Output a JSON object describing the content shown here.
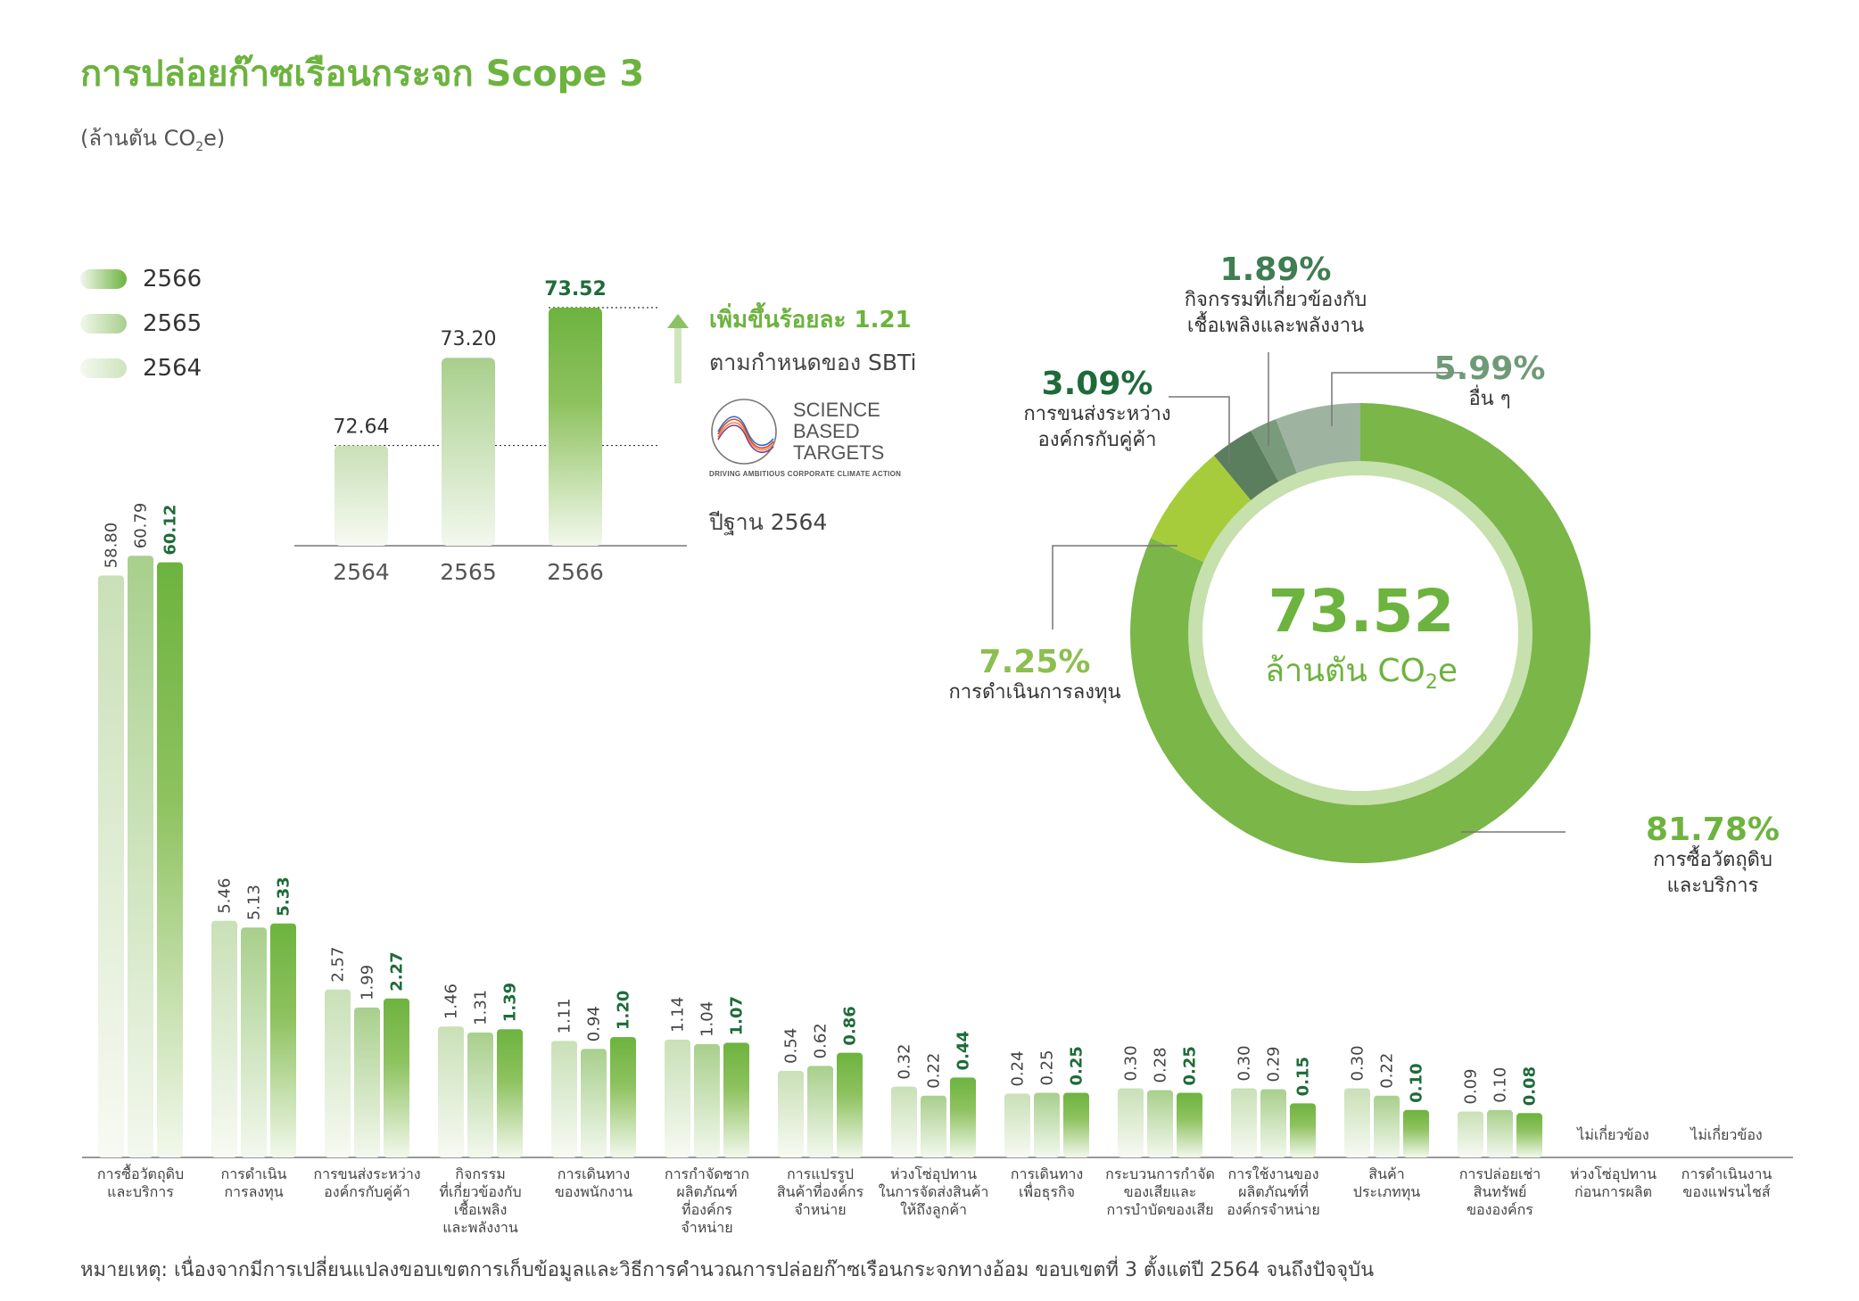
{
  "title": "การปล่อยก๊าซเรือนกระจก Scope 3",
  "subtitle": {
    "prefix": "(ล้านตัน CO",
    "sub": "2",
    "suffix": "e)"
  },
  "colors": {
    "y2566": "#6db33f",
    "y2565": "#a8cf8c",
    "y2564": "#cde3bd",
    "dark": "#1e6b3a",
    "accent": "#6db33f"
  },
  "legend": [
    {
      "label": "2566",
      "color": "#6db33f"
    },
    {
      "label": "2565",
      "color": "#a8cf8c"
    },
    {
      "label": "2564",
      "color": "#cde3bd"
    }
  ],
  "sbt": {
    "increase": "เพิ่มขึ้นร้อยละ 1.21",
    "sub": "ตามกำหนดของ SBTi",
    "logo_lines": [
      "SCIENCE",
      "BASED",
      "TARGETS"
    ],
    "logo_tagline": "DRIVING AMBITIOUS CORPORATE CLIMATE ACTION",
    "base_year": "ปีฐาน 2564"
  },
  "donut_center": {
    "value": "73.52",
    "unit_prefix": "ล้านตัน CO",
    "unit_sub": "2",
    "unit_suffix": "e"
  },
  "note": "หมายเหตุ: เนื่องจากมีการเปลี่ยนแปลงขอบเขตการเก็บข้อมูลและวิธีการคำนวณการปล่อยก๊าซเรือนกระจกทางอ้อม ขอบเขตที่ 3 ตั้งแต่ปี 2564 จนถึงปัจจุบัน",
  "chart_data": [
    {
      "type": "bar",
      "categories": [
        [
          "การซื้อวัตถุดิบ",
          "และบริการ"
        ],
        [
          "การดำเนิน",
          "การลงทุน"
        ],
        [
          "การขนส่งระหว่าง",
          "องค์กรกับคู่ค้า"
        ],
        [
          "กิจกรรม",
          "ที่เกี่ยวข้องกับ",
          "เชื้อเพลิง",
          "และพลังงาน"
        ],
        [
          "การเดินทาง",
          "ของพนักงาน"
        ],
        [
          "การกำจัดซาก",
          "ผลิตภัณฑ์",
          "ที่องค์กร",
          "จำหน่าย"
        ],
        [
          "การแปรรูป",
          "สินค้าที่องค์กร",
          "จำหน่าย"
        ],
        [
          "ห่วงโซ่อุปทาน",
          "ในการจัดส่งสินค้า",
          "ให้ถึงลูกค้า"
        ],
        [
          "การเดินทาง",
          "เพื่อธุรกิจ"
        ],
        [
          "กระบวนการกำจัด",
          "ของเสียและ",
          "การบำบัดของเสีย"
        ],
        [
          "การใช้งานของ",
          "ผลิตภัณฑ์ที่",
          "องค์กรจำหน่าย"
        ],
        [
          "สินค้า",
          "ประเภททุน"
        ],
        [
          "การปล่อยเช่า",
          "สินทรัพย์",
          "ขององค์กร"
        ],
        [
          "ห่วงโซ่อุปทาน",
          "ก่อนการผลิต"
        ],
        [
          "การดำเนินงาน",
          "ของแฟรนไชส์"
        ]
      ],
      "series": [
        {
          "name": "2564",
          "values": [
            58.8,
            5.46,
            2.57,
            1.46,
            1.11,
            1.14,
            0.54,
            0.32,
            0.24,
            0.3,
            0.3,
            0.3,
            0.09,
            null,
            null
          ],
          "labels": [
            "58.80",
            "5.46",
            "2.57",
            "1.46",
            "1.11",
            "1.14",
            "0.54",
            "0.32",
            "0.24",
            "0.30",
            "0.30",
            "0.30",
            "0.09",
            "",
            ""
          ]
        },
        {
          "name": "2565",
          "values": [
            60.79,
            5.13,
            1.99,
            1.31,
            0.94,
            1.04,
            0.62,
            0.22,
            0.25,
            0.28,
            0.29,
            0.22,
            0.1,
            null,
            null
          ],
          "labels": [
            "60.79",
            "5.13",
            "1.99",
            "1.31",
            "0.94",
            "1.04",
            "0.62",
            "0.22",
            "0.25",
            "0.28",
            "0.29",
            "0.22",
            "0.10",
            "",
            ""
          ]
        },
        {
          "name": "2566",
          "values": [
            60.12,
            5.33,
            2.27,
            1.39,
            1.2,
            1.07,
            0.86,
            0.44,
            0.25,
            0.25,
            0.15,
            0.1,
            0.08,
            null,
            null
          ],
          "labels": [
            "60.12",
            "5.33",
            "2.27",
            "1.39",
            "1.20",
            "1.07",
            "0.86",
            "0.44",
            "0.25",
            "0.25",
            "0.15",
            "0.10",
            "0.08",
            "",
            ""
          ]
        }
      ],
      "na_label": "ไม่เกี่ยวข้อง",
      "na_indices": [
        13,
        14
      ],
      "scale": "non-linear"
    },
    {
      "type": "bar",
      "categories": [
        "2564",
        "2565",
        "2566"
      ],
      "values": [
        72.64,
        73.2,
        73.52
      ],
      "labels": [
        "72.64",
        "73.20",
        "73.52"
      ]
    },
    {
      "type": "pie",
      "donut": true,
      "total": 73.52,
      "slices": [
        {
          "pct_label": "81.78%",
          "name_lines": [
            "การซื้อวัตถุดิบ",
            "และบริการ"
          ],
          "value": 81.78,
          "color": "#7ab648",
          "label_color": "#6db33f"
        },
        {
          "pct_label": "7.25%",
          "name_lines": [
            "การดำเนินการลงทุน"
          ],
          "value": 7.25,
          "color": "#a6cc3b",
          "label_color": "#8cbf4f"
        },
        {
          "pct_label": "3.09%",
          "name_lines": [
            "การขนส่งระหว่าง",
            "องค์กรกับคู่ค้า"
          ],
          "value": 3.09,
          "color": "#5b7e5e",
          "label_color": "#1e6b3a"
        },
        {
          "pct_label": "1.89%",
          "name_lines": [
            "กิจกรรมที่เกี่ยวข้องกับ",
            "เชื้อเพลิงและพลังงาน"
          ],
          "value": 1.89,
          "color": "#7a9a7c",
          "label_color": "#3f7d52"
        },
        {
          "pct_label": "5.99%",
          "name_lines": [
            "อื่น ๆ"
          ],
          "value": 5.99,
          "color": "#9fb3a1",
          "label_color": "#6f9a78"
        }
      ]
    }
  ]
}
